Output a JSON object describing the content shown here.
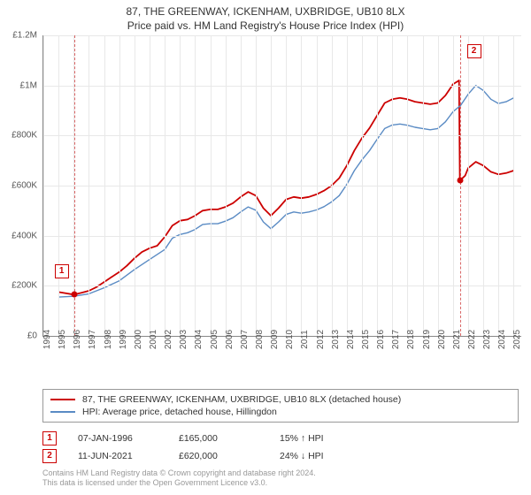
{
  "title_line1": "87, THE GREENWAY, ICKENHAM, UXBRIDGE, UB10 8LX",
  "title_line2": "Price paid vs. HM Land Registry's House Price Index (HPI)",
  "chart": {
    "type": "line",
    "background_color": "#ffffff",
    "grid_color": "#e8e8e8",
    "axis_color": "#888888",
    "x_years": [
      1994,
      1995,
      1996,
      1997,
      1998,
      1999,
      2000,
      2001,
      2002,
      2003,
      2004,
      2005,
      2006,
      2007,
      2008,
      2009,
      2010,
      2011,
      2012,
      2013,
      2014,
      2015,
      2016,
      2017,
      2018,
      2019,
      2020,
      2021,
      2022,
      2023,
      2024,
      2025
    ],
    "x_min": 1994,
    "x_max": 2025.5,
    "y_min": 0,
    "y_max": 1200000,
    "y_ticks": [
      0,
      200000,
      400000,
      600000,
      800000,
      1000000,
      1200000
    ],
    "y_tick_labels": [
      "£0",
      "£200K",
      "£400K",
      "£600K",
      "£800K",
      "£1M",
      "£1.2M"
    ],
    "label_fontsize": 10,
    "series": [
      {
        "name": "property_price",
        "color": "#cc0000",
        "width": 1.8,
        "data": [
          [
            1995.0,
            175000
          ],
          [
            1996.02,
            165000
          ],
          [
            1996.5,
            172000
          ],
          [
            1997.0,
            180000
          ],
          [
            1997.5,
            195000
          ],
          [
            1998.0,
            215000
          ],
          [
            1998.5,
            235000
          ],
          [
            1999.0,
            255000
          ],
          [
            1999.5,
            280000
          ],
          [
            2000.0,
            310000
          ],
          [
            2000.5,
            335000
          ],
          [
            2001.0,
            350000
          ],
          [
            2001.5,
            360000
          ],
          [
            2002.0,
            395000
          ],
          [
            2002.5,
            440000
          ],
          [
            2003.0,
            460000
          ],
          [
            2003.5,
            465000
          ],
          [
            2004.0,
            480000
          ],
          [
            2004.5,
            500000
          ],
          [
            2005.0,
            505000
          ],
          [
            2005.5,
            505000
          ],
          [
            2006.0,
            515000
          ],
          [
            2006.5,
            530000
          ],
          [
            2007.0,
            555000
          ],
          [
            2007.5,
            575000
          ],
          [
            2008.0,
            560000
          ],
          [
            2008.5,
            510000
          ],
          [
            2009.0,
            480000
          ],
          [
            2009.5,
            510000
          ],
          [
            2010.0,
            545000
          ],
          [
            2010.5,
            555000
          ],
          [
            2011.0,
            550000
          ],
          [
            2011.5,
            555000
          ],
          [
            2012.0,
            565000
          ],
          [
            2012.5,
            580000
          ],
          [
            2013.0,
            600000
          ],
          [
            2013.5,
            630000
          ],
          [
            2014.0,
            680000
          ],
          [
            2014.5,
            740000
          ],
          [
            2015.0,
            790000
          ],
          [
            2015.5,
            830000
          ],
          [
            2016.0,
            880000
          ],
          [
            2016.5,
            930000
          ],
          [
            2017.0,
            945000
          ],
          [
            2017.5,
            950000
          ],
          [
            2018.0,
            945000
          ],
          [
            2018.5,
            935000
          ],
          [
            2019.0,
            930000
          ],
          [
            2019.5,
            925000
          ],
          [
            2020.0,
            930000
          ],
          [
            2020.5,
            960000
          ],
          [
            2021.0,
            1005000
          ],
          [
            2021.4,
            1020000
          ],
          [
            2021.45,
            620000
          ],
          [
            2021.8,
            640000
          ],
          [
            2022.0,
            670000
          ],
          [
            2022.5,
            695000
          ],
          [
            2023.0,
            680000
          ],
          [
            2023.5,
            655000
          ],
          [
            2024.0,
            645000
          ],
          [
            2024.5,
            650000
          ],
          [
            2025.0,
            660000
          ]
        ]
      },
      {
        "name": "hpi",
        "color": "#5a8bc4",
        "width": 1.4,
        "data": [
          [
            1995.0,
            155000
          ],
          [
            1996.0,
            158000
          ],
          [
            1997.0,
            168000
          ],
          [
            1998.0,
            192000
          ],
          [
            1999.0,
            220000
          ],
          [
            2000.0,
            265000
          ],
          [
            2001.0,
            305000
          ],
          [
            2002.0,
            345000
          ],
          [
            2002.5,
            390000
          ],
          [
            2003.0,
            405000
          ],
          [
            2003.5,
            412000
          ],
          [
            2004.0,
            425000
          ],
          [
            2004.5,
            445000
          ],
          [
            2005.0,
            448000
          ],
          [
            2005.5,
            448000
          ],
          [
            2006.0,
            458000
          ],
          [
            2006.5,
            472000
          ],
          [
            2007.0,
            495000
          ],
          [
            2007.5,
            515000
          ],
          [
            2008.0,
            502000
          ],
          [
            2008.5,
            455000
          ],
          [
            2009.0,
            428000
          ],
          [
            2009.5,
            455000
          ],
          [
            2010.0,
            485000
          ],
          [
            2010.5,
            495000
          ],
          [
            2011.0,
            490000
          ],
          [
            2011.5,
            495000
          ],
          [
            2012.0,
            503000
          ],
          [
            2012.5,
            516000
          ],
          [
            2013.0,
            535000
          ],
          [
            2013.5,
            560000
          ],
          [
            2014.0,
            605000
          ],
          [
            2014.5,
            660000
          ],
          [
            2015.0,
            703000
          ],
          [
            2015.5,
            740000
          ],
          [
            2016.0,
            785000
          ],
          [
            2016.5,
            828000
          ],
          [
            2017.0,
            842000
          ],
          [
            2017.5,
            846000
          ],
          [
            2018.0,
            841000
          ],
          [
            2018.5,
            833000
          ],
          [
            2019.0,
            828000
          ],
          [
            2019.5,
            823000
          ],
          [
            2020.0,
            828000
          ],
          [
            2020.5,
            855000
          ],
          [
            2021.0,
            895000
          ],
          [
            2021.5,
            920000
          ],
          [
            2022.0,
            965000
          ],
          [
            2022.5,
            1000000
          ],
          [
            2023.0,
            980000
          ],
          [
            2023.5,
            945000
          ],
          [
            2024.0,
            928000
          ],
          [
            2024.5,
            935000
          ],
          [
            2025.0,
            950000
          ]
        ]
      }
    ],
    "markers": [
      {
        "label": "1",
        "x": 1996.02,
        "y": 165000,
        "box_offset_x": -22,
        "box_offset_y": -34
      },
      {
        "label": "2",
        "x": 2021.45,
        "y": 620000,
        "box_offset_x": 8,
        "box_offset_y": -154
      }
    ],
    "vlines": [
      1996.02,
      2021.45
    ]
  },
  "legend": {
    "items": [
      {
        "color": "#cc0000",
        "label": "87, THE GREENWAY, ICKENHAM, UXBRIDGE, UB10 8LX (detached house)"
      },
      {
        "color": "#5a8bc4",
        "label": "HPI: Average price, detached house, Hillingdon"
      }
    ]
  },
  "transactions": [
    {
      "n": "1",
      "date": "07-JAN-1996",
      "price": "£165,000",
      "delta": "15% ↑ HPI"
    },
    {
      "n": "2",
      "date": "11-JUN-2021",
      "price": "£620,000",
      "delta": "24% ↓ HPI"
    }
  ],
  "footer_line1": "Contains HM Land Registry data © Crown copyright and database right 2024.",
  "footer_line2": "This data is licensed under the Open Government Licence v3.0."
}
